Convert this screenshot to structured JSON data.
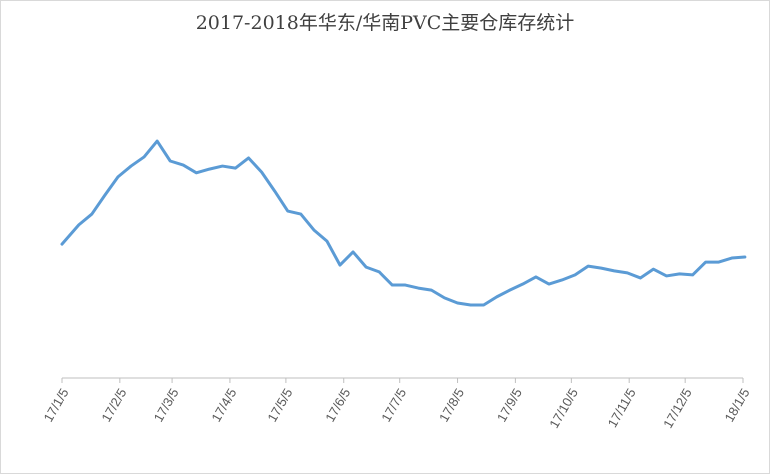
{
  "chart_data": {
    "type": "line",
    "title": "2017-2018年华东/华南PVC主要仓库存统计",
    "xlim": [
      0,
      365
    ],
    "xticks": [
      {
        "value": 0,
        "label": "17/1/5"
      },
      {
        "value": 31,
        "label": "17/2/5"
      },
      {
        "value": 59,
        "label": "17/3/5"
      },
      {
        "value": 90,
        "label": "17/4/5"
      },
      {
        "value": 120,
        "label": "17/5/5"
      },
      {
        "value": 151,
        "label": "17/6/5"
      },
      {
        "value": 181,
        "label": "17/7/5"
      },
      {
        "value": 212,
        "label": "17/8/5"
      },
      {
        "value": 243,
        "label": "17/9/5"
      },
      {
        "value": 273,
        "label": "17/10/5"
      },
      {
        "value": 304,
        "label": "17/11/5"
      },
      {
        "value": 334,
        "label": "17/12/5"
      },
      {
        "value": 365,
        "label": "18/1/5"
      }
    ],
    "ylim": [
      0,
      10
    ],
    "x": [
      0,
      9,
      16,
      23,
      30,
      37,
      44,
      51,
      58,
      65,
      72,
      79,
      86,
      93,
      100,
      107,
      114,
      121,
      128,
      135,
      142,
      149,
      156,
      163,
      170,
      177,
      184,
      191,
      198,
      205,
      212,
      219,
      226,
      233,
      240,
      247,
      254,
      261,
      268,
      275,
      282,
      289,
      296,
      303,
      310,
      317,
      324,
      331,
      338,
      345,
      352,
      359,
      366
    ],
    "series": [
      {
        "color": "#5b9bd5",
        "values": [
          3.96,
          4.53,
          4.85,
          5.41,
          5.95,
          6.27,
          6.54,
          7.01,
          6.42,
          6.3,
          6.07,
          6.18,
          6.27,
          6.21,
          6.51,
          6.09,
          5.53,
          4.94,
          4.85,
          4.38,
          4.05,
          3.34,
          3.73,
          3.28,
          3.14,
          2.75,
          2.75,
          2.66,
          2.6,
          2.37,
          2.22,
          2.16,
          2.16,
          2.4,
          2.6,
          2.78,
          2.99,
          2.78,
          2.9,
          3.05,
          3.31,
          3.25,
          3.17,
          3.11,
          2.96,
          3.22,
          3.02,
          3.08,
          3.05,
          3.43,
          3.43,
          3.55,
          3.58
        ]
      }
    ]
  }
}
